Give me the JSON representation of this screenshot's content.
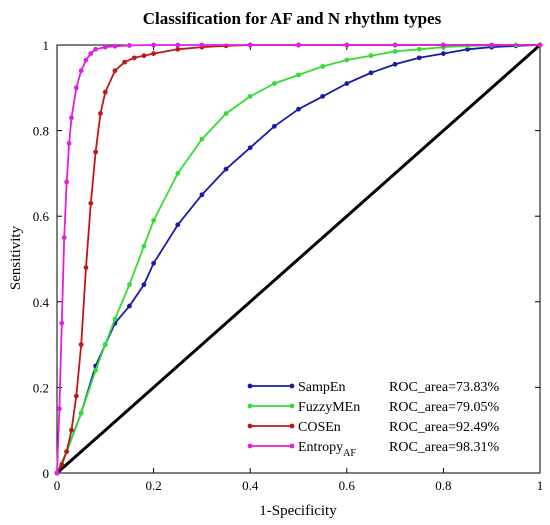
{
  "chart_data": {
    "type": "line",
    "title": "Classification for AF and N rhythm types",
    "xlabel": "1-Specificity",
    "ylabel": "Sensitivity",
    "xlim": [
      0,
      1
    ],
    "ylim": [
      0,
      1
    ],
    "xticks": [
      "0",
      "0.2",
      "0.4",
      "0.6",
      "0.8",
      "1"
    ],
    "yticks": [
      "0",
      "0.2",
      "0.4",
      "0.6",
      "0.8",
      "1"
    ],
    "grid": false,
    "legend_position": "bottom-right",
    "reference_line": {
      "x": [
        0,
        1
      ],
      "y": [
        0,
        1
      ],
      "color": "#000000"
    },
    "series": [
      {
        "name": "SampEn",
        "sub": "",
        "roc": "ROC_area=73.83%",
        "color": "#1a1aa6",
        "x": [
          0,
          0.02,
          0.05,
          0.08,
          0.1,
          0.12,
          0.15,
          0.18,
          0.2,
          0.25,
          0.3,
          0.35,
          0.4,
          0.45,
          0.5,
          0.55,
          0.6,
          0.65,
          0.7,
          0.75,
          0.8,
          0.85,
          0.9,
          0.95,
          1
        ],
        "y": [
          0,
          0.05,
          0.14,
          0.25,
          0.3,
          0.35,
          0.39,
          0.44,
          0.49,
          0.58,
          0.65,
          0.71,
          0.76,
          0.81,
          0.85,
          0.88,
          0.91,
          0.935,
          0.955,
          0.97,
          0.98,
          0.99,
          0.995,
          0.998,
          1
        ]
      },
      {
        "name": "FuzzyMEn",
        "sub": "",
        "roc": "ROC_area=79.05%",
        "color": "#33dd33",
        "x": [
          0,
          0.02,
          0.05,
          0.08,
          0.1,
          0.12,
          0.15,
          0.18,
          0.2,
          0.25,
          0.3,
          0.35,
          0.4,
          0.45,
          0.5,
          0.55,
          0.6,
          0.65,
          0.7,
          0.75,
          0.8,
          0.85,
          0.9,
          0.95,
          1
        ],
        "y": [
          0,
          0.05,
          0.14,
          0.24,
          0.3,
          0.36,
          0.44,
          0.53,
          0.59,
          0.7,
          0.78,
          0.84,
          0.88,
          0.91,
          0.93,
          0.95,
          0.965,
          0.975,
          0.985,
          0.99,
          0.995,
          0.998,
          0.999,
          1,
          1
        ]
      },
      {
        "name": "COSEn",
        "sub": "",
        "roc": "ROC_area=92.49%",
        "color": "#c01818",
        "x": [
          0,
          0.01,
          0.02,
          0.03,
          0.04,
          0.05,
          0.06,
          0.07,
          0.08,
          0.09,
          0.1,
          0.12,
          0.14,
          0.16,
          0.18,
          0.2,
          0.25,
          0.3,
          0.35,
          0.4,
          0.5,
          0.6,
          0.7,
          0.8,
          0.9,
          1
        ],
        "y": [
          0,
          0.02,
          0.05,
          0.1,
          0.18,
          0.3,
          0.48,
          0.63,
          0.75,
          0.84,
          0.89,
          0.94,
          0.96,
          0.97,
          0.975,
          0.98,
          0.99,
          0.995,
          0.998,
          1,
          1,
          1,
          1,
          1,
          1,
          1
        ]
      },
      {
        "name": "Entropy",
        "sub": "AF",
        "roc": "ROC_area=98.31%",
        "color": "#e020e0",
        "x": [
          0,
          0.005,
          0.01,
          0.015,
          0.02,
          0.025,
          0.03,
          0.04,
          0.05,
          0.06,
          0.07,
          0.08,
          0.1,
          0.12,
          0.15,
          0.2,
          0.25,
          0.3,
          0.4,
          0.5,
          0.6,
          0.7,
          0.8,
          0.9,
          1
        ],
        "y": [
          0,
          0.15,
          0.35,
          0.55,
          0.68,
          0.77,
          0.83,
          0.9,
          0.94,
          0.965,
          0.98,
          0.99,
          0.995,
          0.997,
          0.999,
          1,
          1,
          1,
          1,
          1,
          1,
          1,
          1,
          1,
          1
        ]
      }
    ]
  }
}
